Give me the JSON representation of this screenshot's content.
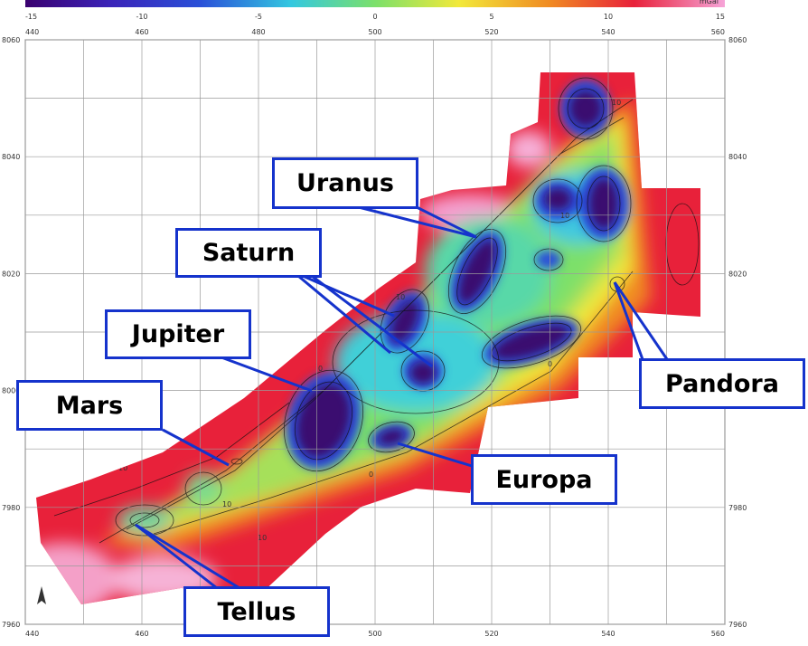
{
  "colorbar": {
    "labels": [
      "-15",
      "-10",
      "-5",
      "0",
      "5",
      "10",
      "15"
    ],
    "unit": "mGal",
    "colors": [
      "#3a006f",
      "#2a50d8",
      "#33c8e0",
      "#7be06a",
      "#f2e93a",
      "#f08a22",
      "#e8213a",
      "#f6a4d8"
    ]
  },
  "axes": {
    "x_ticks": [
      "440",
      "460",
      "480",
      "500",
      "520",
      "540",
      "560"
    ],
    "y_ticks": [
      "8060",
      "8040",
      "8020",
      "8000",
      "7980",
      "7960"
    ]
  },
  "contour_labels": [
    "0",
    "0",
    "0",
    "10",
    "10",
    "10",
    "10",
    "10",
    "10"
  ],
  "callouts": {
    "uranus": "Uranus",
    "saturn": "Saturn",
    "jupiter": "Jupiter",
    "mars": "Mars",
    "europa": "Europa",
    "pandora": "Pandora",
    "tellus": "Tellus"
  },
  "colors": {
    "callout_border": "#1533cc",
    "grid": "#9a9a9a"
  }
}
